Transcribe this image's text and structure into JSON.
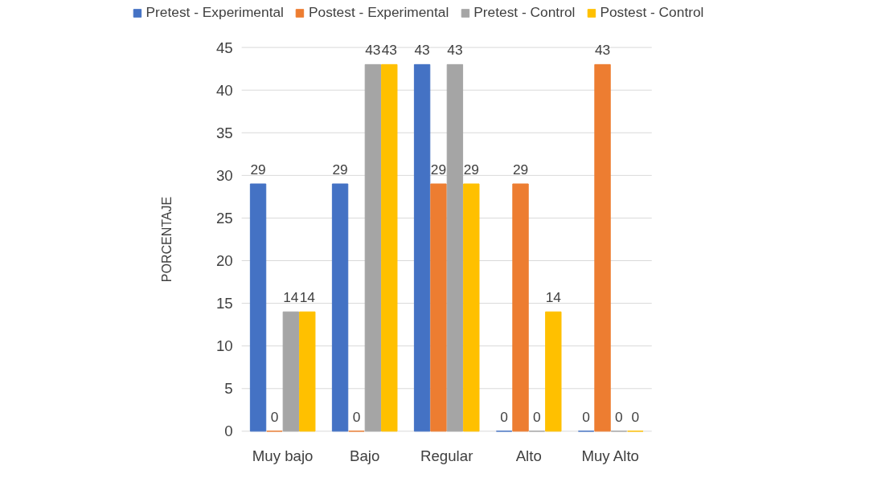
{
  "chart_data": {
    "type": "bar",
    "ylabel": "PORCENTAJE",
    "categories": [
      "Muy bajo",
      "Bajo",
      "Regular",
      "Alto",
      "Muy Alto"
    ],
    "series": [
      {
        "name": "Pretest - Experimental",
        "color": "#4472c4",
        "values": [
          29,
          29,
          43,
          0,
          0
        ]
      },
      {
        "name": "Postest - Experimental",
        "color": "#ed7d31",
        "values": [
          0,
          0,
          29,
          29,
          43
        ]
      },
      {
        "name": "Pretest - Control",
        "color": "#a5a5a5",
        "values": [
          14,
          43,
          43,
          0,
          0
        ]
      },
      {
        "name": "Postest - Control",
        "color": "#ffc000",
        "values": [
          14,
          43,
          29,
          14,
          0
        ]
      }
    ],
    "ylim": [
      0,
      45
    ],
    "yticks": [
      0,
      5,
      10,
      15,
      20,
      25,
      30,
      35,
      40,
      45
    ],
    "grid": "y",
    "legend": "top",
    "data_labels": true
  }
}
